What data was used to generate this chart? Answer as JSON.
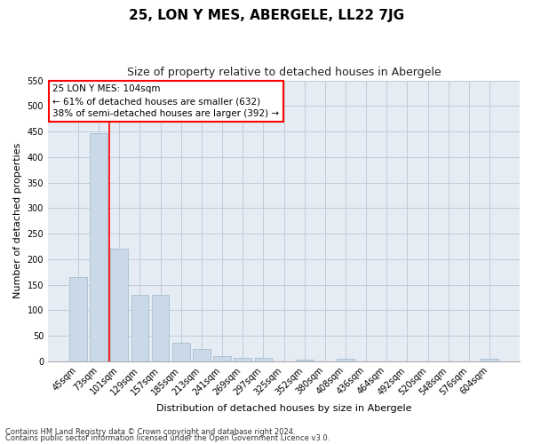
{
  "title": "25, LON Y MES, ABERGELE, LL22 7JG",
  "subtitle": "Size of property relative to detached houses in Abergele",
  "xlabel": "Distribution of detached houses by size in Abergele",
  "ylabel": "Number of detached properties",
  "categories": [
    "45sqm",
    "73sqm",
    "101sqm",
    "129sqm",
    "157sqm",
    "185sqm",
    "213sqm",
    "241sqm",
    "269sqm",
    "297sqm",
    "325sqm",
    "352sqm",
    "380sqm",
    "408sqm",
    "436sqm",
    "464sqm",
    "492sqm",
    "520sqm",
    "548sqm",
    "576sqm",
    "604sqm"
  ],
  "values": [
    165,
    447,
    220,
    130,
    130,
    37,
    24,
    10,
    7,
    6,
    0,
    4,
    0,
    5,
    0,
    0,
    0,
    0,
    0,
    0,
    5
  ],
  "bar_color": "#c9d9e8",
  "bar_edge_color": "#a8bfd0",
  "grid_color": "#c0ccd8",
  "background_color": "#e6ecf4",
  "ylim": [
    0,
    550
  ],
  "yticks": [
    0,
    50,
    100,
    150,
    200,
    250,
    300,
    350,
    400,
    450,
    500,
    550
  ],
  "red_line_x": 1.5,
  "annotation_box_text_line1": "25 LON Y MES: 104sqm",
  "annotation_box_text_line2": "← 61% of detached houses are smaller (632)",
  "annotation_box_text_line3": "38% of semi-detached houses are larger (392) →",
  "footnote1": "Contains HM Land Registry data © Crown copyright and database right 2024.",
  "footnote2": "Contains public sector information licensed under the Open Government Licence v3.0.",
  "title_fontsize": 11,
  "subtitle_fontsize": 9,
  "annotation_fontsize": 7.5,
  "axis_label_fontsize": 8,
  "tick_fontsize": 7,
  "footnote_fontsize": 6
}
